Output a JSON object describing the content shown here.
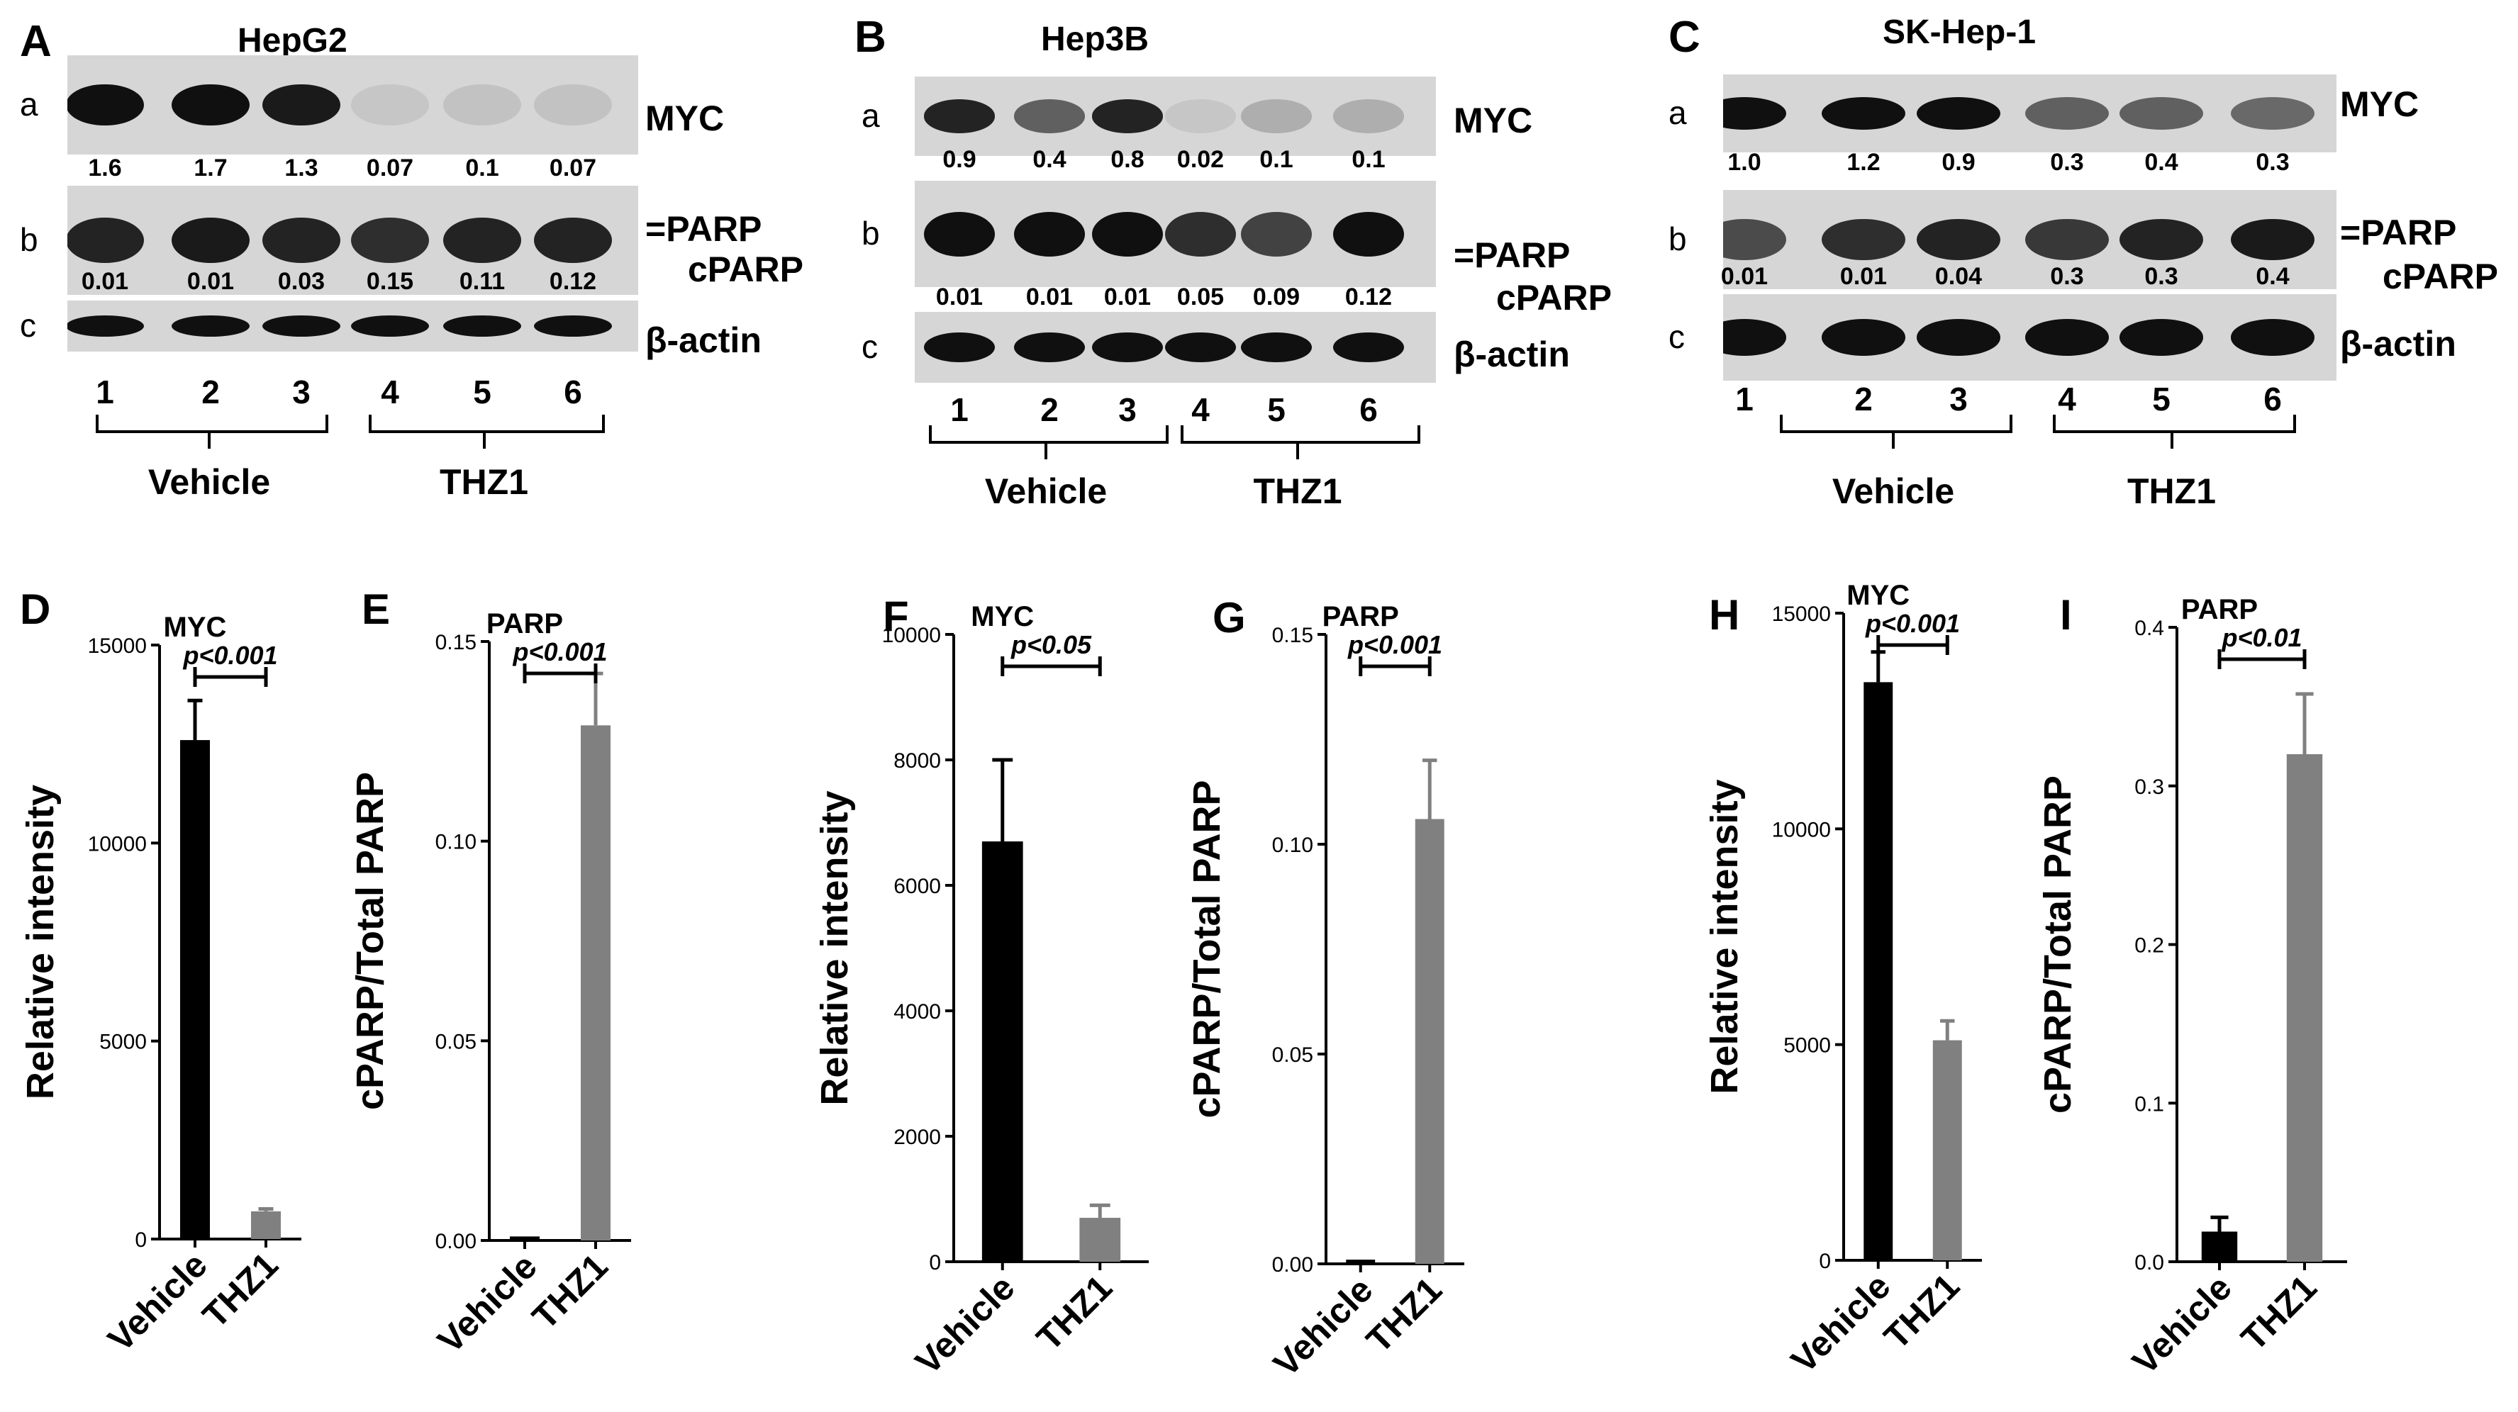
{
  "western_blots": [
    {
      "panel": "A",
      "cell_line": "HepG2",
      "rows": [
        {
          "row": "a",
          "protein": "MYC",
          "quant": [
            "1.6",
            "1.7",
            "1.3",
            "0.07",
            "0.1",
            "0.07"
          ],
          "intensity": [
            1.0,
            1.0,
            0.95,
            0.08,
            0.1,
            0.1
          ]
        },
        {
          "row": "b",
          "protein": "PARP",
          "protein2": "cPARP",
          "quant": [
            "0.01",
            "0.01",
            "0.03",
            "0.15",
            "0.11",
            "0.12"
          ],
          "intensity": [
            0.9,
            0.95,
            0.9,
            0.85,
            0.9,
            0.9
          ]
        },
        {
          "row": "c",
          "protein": "β-actin",
          "quant": [],
          "intensity": [
            1,
            1,
            1,
            1,
            1,
            1
          ]
        }
      ],
      "lanes": [
        "1",
        "2",
        "3",
        "4",
        "5",
        "6"
      ],
      "groups": [
        "Vehicle",
        "THZ1"
      ]
    },
    {
      "panel": "B",
      "cell_line": "Hep3B",
      "rows": [
        {
          "row": "a",
          "protein": "MYC",
          "quant": [
            "0.9",
            "0.4",
            "0.8",
            "0.02",
            "0.1",
            "0.1"
          ],
          "intensity": [
            0.9,
            0.6,
            0.9,
            0.05,
            0.2,
            0.2
          ]
        },
        {
          "row": "b",
          "protein": "PARP",
          "protein2": "cPARP",
          "quant": [
            "0.01",
            "0.01",
            "0.01",
            "0.05",
            "0.09",
            "0.12"
          ],
          "intensity": [
            1,
            1,
            1,
            0.85,
            0.75,
            1
          ]
        },
        {
          "row": "c",
          "protein": "β-actin",
          "quant": [],
          "intensity": [
            1,
            1,
            1,
            1,
            1,
            1
          ]
        }
      ],
      "lanes": [
        "1",
        "2",
        "3",
        "4",
        "5",
        "6"
      ],
      "groups": [
        "Vehicle",
        "THZ1"
      ]
    },
    {
      "panel": "C",
      "cell_line": "SK-Hep-1",
      "rows": [
        {
          "row": "a",
          "protein": "MYC",
          "quant": [
            "1.0",
            "1.2",
            "0.9",
            "0.3",
            "0.4",
            "0.3"
          ],
          "intensity": [
            1,
            1,
            1,
            0.6,
            0.6,
            0.55
          ]
        },
        {
          "row": "b",
          "protein": "PARP",
          "protein2": "cPARP",
          "quant": [
            "0.01",
            "0.01",
            "0.04",
            "0.3",
            "0.3",
            "0.4"
          ],
          "intensity": [
            0.7,
            0.85,
            0.9,
            0.8,
            0.9,
            0.95
          ]
        },
        {
          "row": "c",
          "protein": "β-actin",
          "quant": [],
          "intensity": [
            1,
            1,
            1,
            1,
            1,
            1
          ]
        }
      ],
      "lanes": [
        "1",
        "2",
        "3",
        "4",
        "5",
        "6"
      ],
      "groups": [
        "Vehicle",
        "THZ1"
      ]
    }
  ],
  "chart_data": [
    {
      "panel": "D",
      "type": "bar",
      "title": "MYC",
      "ylabel": "Relative intensity",
      "categories": [
        "Vehicle",
        "THZ1"
      ],
      "values": [
        12600,
        700
      ],
      "errors": [
        1000,
        60
      ],
      "ylim": [
        0,
        15000
      ],
      "yticks": [
        "0",
        "5000",
        "10000",
        "15000"
      ],
      "pvalue": "p<0.001",
      "colors": [
        "#000000",
        "#808080"
      ]
    },
    {
      "panel": "E",
      "type": "bar",
      "title": "PARP",
      "ylabel": "cPARP/Total PARP",
      "categories": [
        "Vehicle",
        "THZ1"
      ],
      "values": [
        0.001,
        0.129
      ],
      "errors": [
        0,
        0.013
      ],
      "ylim": [
        0,
        0.15
      ],
      "yticks": [
        "0.00",
        "0.05",
        "0.10",
        "0.15"
      ],
      "pvalue": "p<0.001",
      "colors": [
        "#000000",
        "#808080"
      ]
    },
    {
      "panel": "F",
      "type": "bar",
      "title": "MYC",
      "ylabel": "Relative intensity",
      "categories": [
        "Vehicle",
        "THZ1"
      ],
      "values": [
        6700,
        700
      ],
      "errors": [
        1300,
        200
      ],
      "ylim": [
        0,
        10000
      ],
      "yticks": [
        "0",
        "2000",
        "4000",
        "6000",
        "8000",
        "10000"
      ],
      "pvalue": "p<0.05",
      "colors": [
        "#000000",
        "#808080"
      ]
    },
    {
      "panel": "G",
      "type": "bar",
      "title": "PARP",
      "ylabel": "cPARP/Total PARP",
      "categories": [
        "Vehicle",
        "THZ1"
      ],
      "values": [
        0.001,
        0.106
      ],
      "errors": [
        0,
        0.014
      ],
      "ylim": [
        0,
        0.15
      ],
      "yticks": [
        "0.00",
        "0.05",
        "0.10",
        "0.15"
      ],
      "pvalue": "p<0.001",
      "colors": [
        "#000000",
        "#808080"
      ]
    },
    {
      "panel": "H",
      "type": "bar",
      "title": "MYC",
      "ylabel": "Relative intensity",
      "categories": [
        "Vehicle",
        "THZ1"
      ],
      "values": [
        13400,
        5100
      ],
      "errors": [
        700,
        450
      ],
      "ylim": [
        0,
        15000
      ],
      "yticks": [
        "0",
        "5000",
        "10000",
        "15000"
      ],
      "pvalue": "p<0.001",
      "colors": [
        "#000000",
        "#808080"
      ]
    },
    {
      "panel": "I",
      "type": "bar",
      "title": "PARP",
      "ylabel": "cPARP/Total PARP",
      "categories": [
        "Vehicle",
        "THZ1"
      ],
      "values": [
        0.019,
        0.32
      ],
      "errors": [
        0.009,
        0.038
      ],
      "ylim": [
        0,
        0.4
      ],
      "yticks": [
        "0.0",
        "0.1",
        "0.2",
        "0.3",
        "0.4"
      ],
      "pvalue": "p<0.01",
      "colors": [
        "#000000",
        "#808080"
      ]
    }
  ]
}
